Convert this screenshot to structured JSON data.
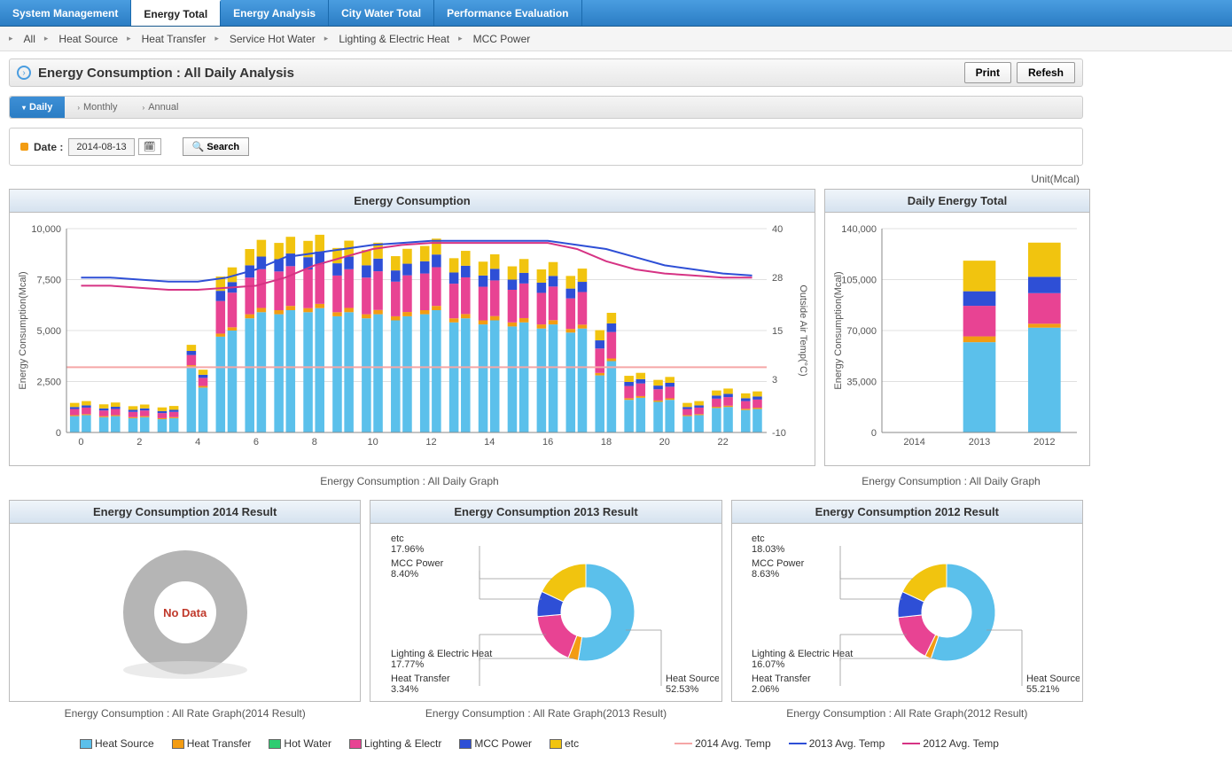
{
  "topNav": {
    "tabs": [
      "System Management",
      "Energy Total",
      "Energy Analysis",
      "City Water Total",
      "Performance Evaluation"
    ],
    "activeIndex": 1
  },
  "subNav": {
    "items": [
      "All",
      "Heat Source",
      "Heat Transfer",
      "Service Hot Water",
      "Lighting & Electric Heat",
      "MCC Power"
    ]
  },
  "pageTitle": "Energy Consumption : All Daily Analysis",
  "buttons": {
    "print": "Print",
    "refresh": "Refesh",
    "search": "Search"
  },
  "periodTabs": {
    "items": [
      "Daily",
      "Monthly",
      "Annual"
    ],
    "activeIndex": 0
  },
  "filter": {
    "dateLabel": "Date :",
    "dateValue": "2014-08-13"
  },
  "unitLabel": "Unit(Mcal)",
  "colors": {
    "heatSource": "#5bc0eb",
    "heatTransfer": "#f39c12",
    "hotWater": "#2ecc71",
    "lighting": "#e84393",
    "mcc": "#2e4fd6",
    "etc": "#f1c40f",
    "temp2014": "#f5a6a6",
    "temp2013": "#2e4fd6",
    "temp2012": "#d63384",
    "grid": "#e0e0e0",
    "axis": "#888",
    "greyDonut": "#b5b5b5"
  },
  "hourlyChart": {
    "title": "Energy Consumption",
    "caption": "Energy Consumption : All Daily Graph",
    "yLeftLabel": "Energy Consumption(Mcal)",
    "yRightLabel": "Outside Air Temp(°C)",
    "yLeftTicks": [
      0,
      2500,
      5000,
      7500,
      10000
    ],
    "yLeftLabels": [
      "0",
      "2,500",
      "5,000",
      "7,500",
      "10,000"
    ],
    "yLeftMax": 10000,
    "yRightTicks": [
      -10,
      3,
      15,
      28,
      40
    ],
    "hours": [
      0,
      1,
      2,
      3,
      4,
      5,
      6,
      7,
      8,
      9,
      10,
      11,
      12,
      13,
      14,
      15,
      16,
      17,
      18,
      19,
      20,
      21,
      22,
      23
    ],
    "stacks2013": [
      [
        800,
        50,
        300,
        100,
        200
      ],
      [
        750,
        50,
        280,
        100,
        200
      ],
      [
        700,
        50,
        260,
        100,
        180
      ],
      [
        650,
        50,
        250,
        100,
        180
      ],
      [
        3200,
        100,
        500,
        200,
        300
      ],
      [
        4700,
        150,
        1600,
        500,
        700
      ],
      [
        5600,
        200,
        1800,
        600,
        800
      ],
      [
        5800,
        200,
        1900,
        600,
        800
      ],
      [
        5900,
        200,
        1900,
        600,
        800
      ],
      [
        5700,
        200,
        1800,
        600,
        750
      ],
      [
        5600,
        200,
        1800,
        600,
        750
      ],
      [
        5500,
        200,
        1700,
        550,
        700
      ],
      [
        5800,
        200,
        1800,
        600,
        750
      ],
      [
        5400,
        200,
        1700,
        550,
        700
      ],
      [
        5300,
        200,
        1650,
        550,
        680
      ],
      [
        5200,
        200,
        1600,
        500,
        650
      ],
      [
        5100,
        200,
        1550,
        500,
        650
      ],
      [
        4900,
        180,
        1500,
        480,
        620
      ],
      [
        2800,
        120,
        1200,
        400,
        500
      ],
      [
        1600,
        80,
        600,
        200,
        300
      ],
      [
        1500,
        70,
        550,
        180,
        280
      ],
      [
        800,
        50,
        300,
        100,
        200
      ],
      [
        1200,
        60,
        400,
        150,
        250
      ],
      [
        1100,
        60,
        380,
        140,
        240
      ]
    ],
    "stacks2012": [
      [
        850,
        50,
        320,
        110,
        210
      ],
      [
        800,
        50,
        300,
        110,
        210
      ],
      [
        750,
        50,
        280,
        100,
        190
      ],
      [
        700,
        50,
        260,
        100,
        190
      ],
      [
        2200,
        80,
        400,
        150,
        250
      ],
      [
        5000,
        160,
        1700,
        520,
        720
      ],
      [
        5900,
        210,
        1900,
        620,
        820
      ],
      [
        6000,
        210,
        1950,
        620,
        820
      ],
      [
        6100,
        210,
        1950,
        620,
        820
      ],
      [
        5900,
        210,
        1900,
        620,
        780
      ],
      [
        5800,
        210,
        1900,
        620,
        780
      ],
      [
        5700,
        210,
        1800,
        570,
        730
      ],
      [
        6000,
        210,
        1900,
        620,
        780
      ],
      [
        5600,
        210,
        1800,
        570,
        730
      ],
      [
        5500,
        210,
        1750,
        570,
        710
      ],
      [
        5400,
        210,
        1700,
        520,
        680
      ],
      [
        5300,
        210,
        1650,
        520,
        680
      ],
      [
        5100,
        190,
        1600,
        500,
        650
      ],
      [
        3500,
        130,
        1300,
        420,
        520
      ],
      [
        1700,
        85,
        620,
        210,
        310
      ],
      [
        1600,
        75,
        570,
        190,
        290
      ],
      [
        850,
        50,
        320,
        110,
        210
      ],
      [
        1250,
        65,
        420,
        160,
        260
      ],
      [
        1150,
        65,
        400,
        150,
        250
      ]
    ],
    "temp2013": [
      28,
      28,
      27.5,
      27,
      27,
      28,
      30,
      33,
      34,
      35,
      36,
      36.5,
      37,
      37,
      37,
      37,
      37,
      36,
      35,
      33,
      31,
      30,
      29,
      28.5
    ],
    "temp2012": [
      26,
      26,
      25.5,
      25,
      25,
      25.5,
      26,
      28,
      31,
      33,
      35,
      36,
      36.5,
      36.5,
      36.5,
      36.5,
      36.5,
      35,
      32,
      30,
      29,
      28.5,
      28,
      28
    ],
    "temp2014Flat": 6
  },
  "dailyTotal": {
    "title": "Daily Energy Total",
    "caption": "Energy Consumption : All Daily Graph",
    "yTicks": [
      0,
      35000,
      70000,
      105000,
      140000
    ],
    "yLabels": [
      "0",
      "35,000",
      "70,000",
      "105,000",
      "140,000"
    ],
    "yMax": 140000,
    "years": [
      "2014",
      "2013",
      "2012"
    ],
    "stacks": {
      "2014": [
        0,
        0,
        0,
        0,
        0
      ],
      "2013": [
        62000,
        4000,
        21000,
        10000,
        21000
      ],
      "2012": [
        72000,
        2700,
        21000,
        11200,
        23500
      ]
    }
  },
  "donuts": {
    "2014": {
      "title": "Energy Consumption 2014 Result",
      "caption": "Energy Consumption : All Rate Graph(2014 Result)",
      "noData": "No Data"
    },
    "2013": {
      "title": "Energy Consumption 2013 Result",
      "caption": "Energy Consumption : All Rate Graph(2013 Result)",
      "slices": [
        {
          "label": "Heat Source",
          "pct": 52.53,
          "color": "#5bc0eb"
        },
        {
          "label": "Heat Transfer",
          "pct": 3.34,
          "color": "#f39c12"
        },
        {
          "label": "Lighting & Electric Heat",
          "pct": 17.77,
          "color": "#e84393"
        },
        {
          "label": "MCC Power",
          "pct": 8.4,
          "color": "#2e4fd6"
        },
        {
          "label": "etc",
          "pct": 17.96,
          "color": "#f1c40f"
        }
      ]
    },
    "2012": {
      "title": "Energy Consumption 2012 Result",
      "caption": "Energy Consumption : All Rate Graph(2012 Result)",
      "slices": [
        {
          "label": "Heat Source",
          "pct": 55.21,
          "color": "#5bc0eb"
        },
        {
          "label": "Heat Transfer",
          "pct": 2.06,
          "color": "#f39c12"
        },
        {
          "label": "Lighting & Electric Heat",
          "pct": 16.07,
          "color": "#e84393"
        },
        {
          "label": "MCC Power",
          "pct": 8.63,
          "color": "#2e4fd6"
        },
        {
          "label": "etc",
          "pct": 18.03,
          "color": "#f1c40f"
        }
      ]
    }
  },
  "legend": {
    "series": [
      {
        "label": "Heat Source",
        "color": "#5bc0eb"
      },
      {
        "label": "Heat Transfer",
        "color": "#f39c12"
      },
      {
        "label": "Hot Water",
        "color": "#2ecc71"
      },
      {
        "label": "Lighting  & Electr",
        "color": "#e84393"
      },
      {
        "label": "MCC Power",
        "color": "#2e4fd6"
      },
      {
        "label": "etc",
        "color": "#f1c40f"
      }
    ],
    "lines": [
      {
        "label": "2014 Avg. Temp",
        "color": "#f5a6a6"
      },
      {
        "label": "2013 Avg. Temp",
        "color": "#2e4fd6"
      },
      {
        "label": "2012 Avg. Temp",
        "color": "#d63384"
      }
    ]
  }
}
